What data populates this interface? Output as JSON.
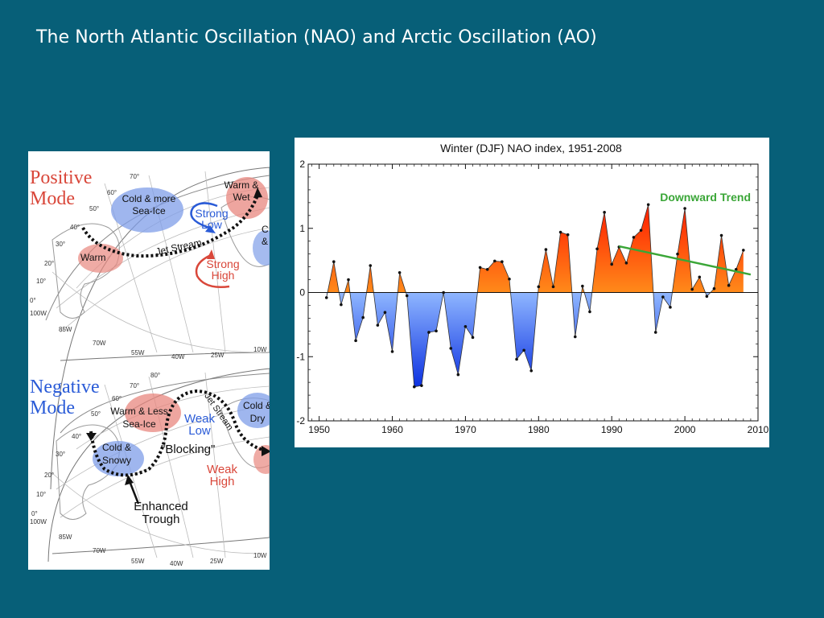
{
  "slide": {
    "title": "The North Atlantic Oscillation (NAO) and Arctic Oscillation (AO)"
  },
  "map": {
    "positive": {
      "mode_label": "Positive\nMode",
      "regions": [
        "Cold & more Sea-Ice",
        "Warm & Wet",
        "Warm",
        "C &"
      ],
      "pressure": [
        "Strong Low",
        "Strong High"
      ],
      "jet_label": "Jet Stream",
      "lat_labels": [
        "70°",
        "60°",
        "50°",
        "40°",
        "30°",
        "20°",
        "10°",
        "0°"
      ],
      "lon_labels": [
        "100W",
        "85W",
        "70W",
        "55W",
        "40W",
        "25W",
        "10W"
      ]
    },
    "negative": {
      "mode_label": "Negative\nMode",
      "regions": [
        "Warm & Less Sea-Ice",
        "Cold & Snowy",
        "Cold & Dry"
      ],
      "pressure": [
        "Weak Low",
        "Weak High",
        "\"Blocking\""
      ],
      "jet_label": "Jet Stream",
      "trough_label": "Enhanced Trough",
      "lat_labels": [
        "80°",
        "70°",
        "60°",
        "50°",
        "40°",
        "30°",
        "20°",
        "10°",
        "0°"
      ],
      "lon_labels": [
        "100W",
        "85W",
        "70W",
        "55W",
        "40W",
        "25W",
        "10W"
      ]
    },
    "colors": {
      "warm": "#e8877f",
      "cold": "#7f9ee8",
      "high": "#d9473a",
      "low": "#2a5bd7"
    }
  },
  "chart_data": {
    "type": "area",
    "title": "Winter (DJF) NAO index, 1951-2008",
    "xlabel": "",
    "ylabel": "",
    "xlim": [
      1948.5,
      2010
    ],
    "ylim": [
      -2,
      2
    ],
    "xticks": [
      1950,
      1960,
      1970,
      1980,
      1990,
      2000,
      2010
    ],
    "yticks": [
      -2,
      -1,
      0,
      1,
      2
    ],
    "x": [
      1951,
      1952,
      1953,
      1954,
      1955,
      1956,
      1957,
      1958,
      1959,
      1960,
      1961,
      1962,
      1963,
      1964,
      1965,
      1966,
      1967,
      1968,
      1969,
      1970,
      1971,
      1972,
      1973,
      1974,
      1975,
      1976,
      1977,
      1978,
      1979,
      1980,
      1981,
      1982,
      1983,
      1984,
      1985,
      1986,
      1987,
      1988,
      1989,
      1990,
      1991,
      1992,
      1993,
      1994,
      1995,
      1996,
      1997,
      1998,
      1999,
      2000,
      2001,
      2002,
      2003,
      2004,
      2005,
      2006,
      2007,
      2008
    ],
    "values": [
      -0.08,
      0.48,
      -0.19,
      0.2,
      -0.75,
      -0.39,
      0.42,
      -0.51,
      -0.31,
      -0.92,
      0.31,
      -0.05,
      -1.47,
      -1.45,
      -0.62,
      -0.6,
      0.0,
      -0.87,
      -1.28,
      -0.53,
      -0.7,
      0.39,
      0.36,
      0.49,
      0.48,
      0.21,
      -1.04,
      -0.9,
      -1.22,
      0.09,
      0.67,
      0.09,
      0.94,
      0.9,
      -0.69,
      0.1,
      -0.3,
      0.68,
      1.25,
      0.44,
      0.71,
      0.46,
      0.86,
      0.97,
      1.37,
      -0.62,
      -0.07,
      -0.23,
      0.6,
      1.31,
      0.05,
      0.24,
      -0.06,
      0.06,
      0.89,
      0.11,
      0.36,
      0.66
    ],
    "positive_color": "#ff4a00",
    "negative_color": "#2d6cf0",
    "trend": {
      "label": "Downward Trend",
      "x": [
        1991,
        2009
      ],
      "y": [
        0.72,
        0.28
      ],
      "color": "#3aa637"
    },
    "grid": false,
    "legend": "none"
  }
}
